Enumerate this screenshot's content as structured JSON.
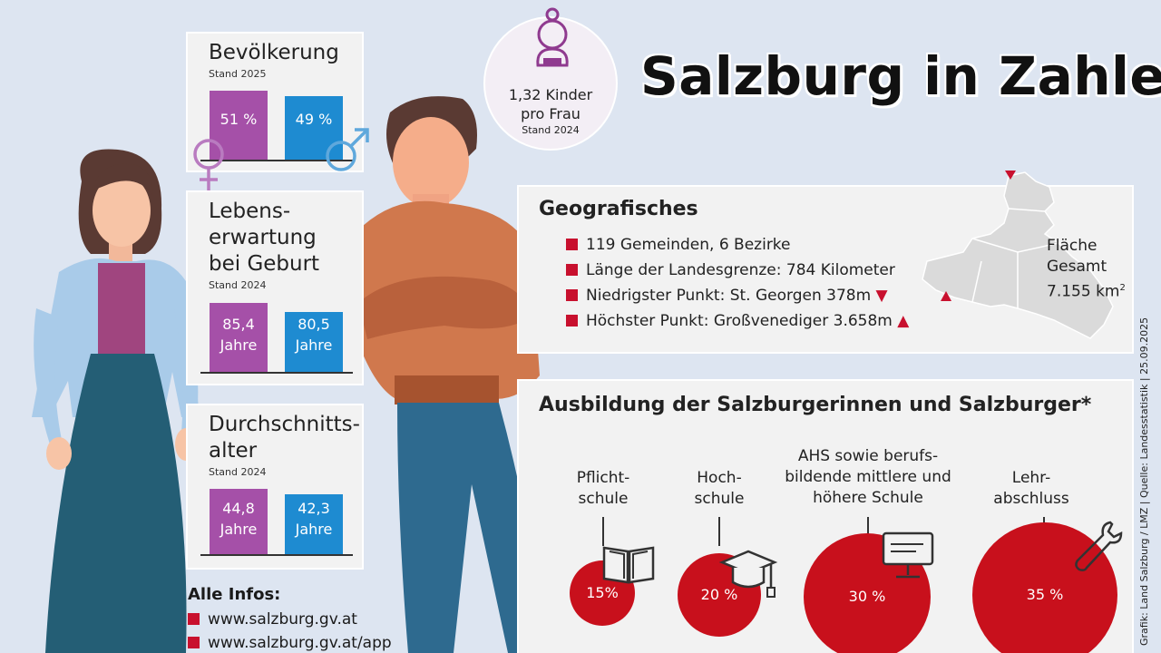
{
  "title": "Salzburg in Zahlen",
  "population": {
    "title": "Bevölkerung",
    "stand": "Stand 2025",
    "female": "51 %",
    "male": "49 %",
    "female_fraction": 0.51,
    "male_fraction": 0.49
  },
  "life_expectancy": {
    "title_l1": "Lebens-",
    "title_l2": "erwartung",
    "title_l3": "bei Geburt",
    "stand": "Stand 2024",
    "female_value": "85,4",
    "male_value": "80,5",
    "unit": "Jahre"
  },
  "average_age": {
    "title_l1": "Durchschnitts-",
    "title_l2": "alter",
    "stand": "Stand 2024",
    "female_value": "44,8",
    "male_value": "42,3",
    "unit": "Jahre"
  },
  "fertility": {
    "line1": "1,32 Kinder",
    "line2": "pro Frau",
    "stand": "Stand 2024"
  },
  "geo": {
    "title": "Geografisches",
    "items": [
      "119 Gemeinden, 6 Bezirke",
      "Länge der Landesgrenze: 784 Kilometer",
      "Niedrigster Punkt: St. Georgen 378m",
      "Höchster Punkt: Großvenediger 3.658m"
    ],
    "area_l1": "Fläche",
    "area_l2": "Gesamt",
    "area_value": "7.155 km",
    "area_sup": "2"
  },
  "education": {
    "title": "Ausbildung der Salzburgerinnen und Salzburger*",
    "categories": [
      {
        "l1": "Pflicht-",
        "l2": "schule",
        "l3": "",
        "value": "15%",
        "share": 15
      },
      {
        "l1": "Hoch-",
        "l2": "schule",
        "l3": "",
        "value": "20 %",
        "share": 20
      },
      {
        "l1": "AHS sowie berufs-",
        "l2": "bildende mittlere und",
        "l3": "höhere Schule",
        "value": "30 %",
        "share": 30
      },
      {
        "l1": "Lehr-",
        "l2": "abschluss",
        "l3": "",
        "value": "35  %",
        "share": 35
      }
    ]
  },
  "info": {
    "title": "Alle Infos:",
    "links": [
      "www.salzburg.gv.at",
      "www.salzburg.gv.at/app"
    ]
  },
  "credit": "Grafik: Land Salzburg / LMZ  |  Quelle: Landesstatistik  |  25.09.2025",
  "colors": {
    "background": "#dde5f1",
    "female": "#a550a8",
    "male": "#1e8bd1",
    "accent_red": "#c8102e"
  }
}
